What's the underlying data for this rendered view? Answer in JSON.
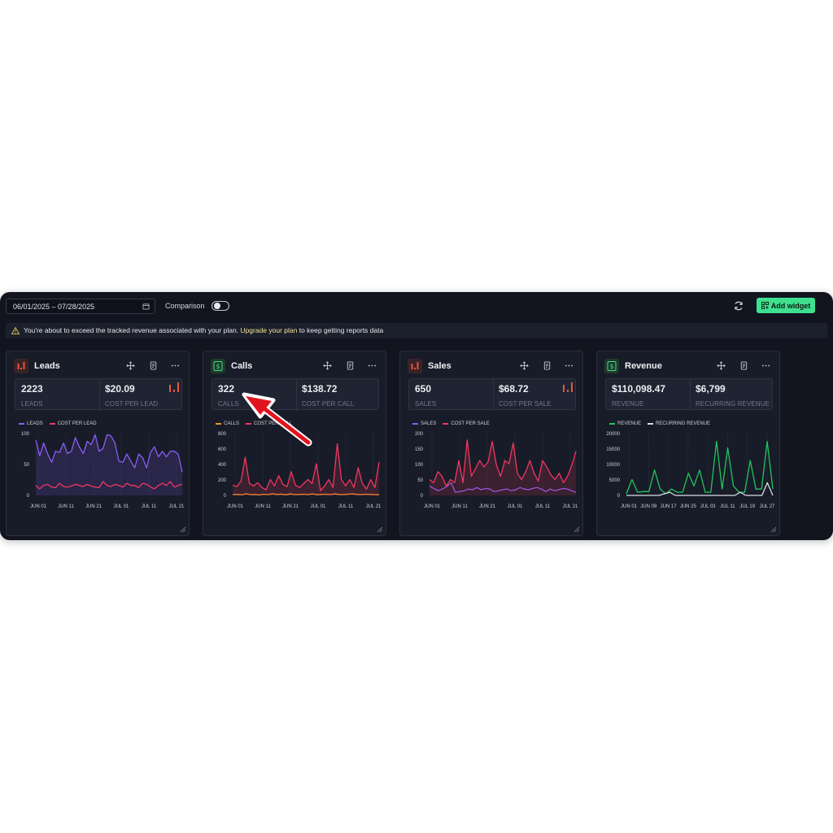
{
  "toolbar": {
    "date_range": "06/01/2025 – 07/28/2025",
    "comparison_label": "Comparison",
    "comparison_on": false,
    "add_widget_label": "Add widget"
  },
  "alert": {
    "text_before": "You're about to exceed the tracked revenue associated with your plan.",
    "link": "Upgrade your plan",
    "text_after": " to keep getting reports data"
  },
  "colors": {
    "accent_green": "#3ee08f",
    "purple": "#8b5cf6",
    "pink": "#f0375f",
    "orange": "#f0932b",
    "green_line": "#22c55e",
    "white_line": "#d8dde5"
  },
  "cards": [
    {
      "title": "Leads",
      "icon": "bar-chart-icon",
      "stats": [
        {
          "value": "2223",
          "label": "LEADS"
        },
        {
          "value": "$20.09",
          "label": "COST PER LEAD"
        }
      ],
      "chart_data": {
        "type": "line",
        "yticks": [
          "100",
          "50",
          "0"
        ],
        "ylim": [
          0,
          115
        ],
        "xticks": [
          "JUN 01",
          "JUN 11",
          "JUN 21",
          "JUL 01",
          "JUL 11",
          "JUL 21"
        ],
        "series": [
          {
            "name": "LEADS",
            "color": "#8b5cf6",
            "fill": true,
            "values": [
              100,
              72,
              95,
              75,
              60,
              80,
              78,
              95,
              76,
              80,
              105,
              88,
              76,
              98,
              92,
              110,
              80,
              85,
              110,
              108,
              95,
              62,
              60,
              75,
              62,
              50,
              75,
              68,
              50,
              78,
              88,
              70,
              80,
              70,
              80,
              80,
              75,
              42
            ]
          },
          {
            "name": "COST PER LEAD",
            "color": "#f0375f",
            "fill": false,
            "values": [
              18,
              12,
              18,
              20,
              15,
              14,
              22,
              16,
              15,
              17,
              20,
              18,
              16,
              20,
              17,
              15,
              14,
              25,
              18,
              16,
              20,
              18,
              15,
              22,
              18,
              18,
              14,
              22,
              20,
              15,
              12,
              18,
              22,
              18,
              25,
              15,
              18,
              20
            ]
          }
        ]
      }
    },
    {
      "title": "Calls",
      "icon": "dollar-icon",
      "stats": [
        {
          "value": "322",
          "label": "CALLS"
        },
        {
          "value": "$138.72",
          "label": "COST PER CALL"
        }
      ],
      "chart_data": {
        "type": "line",
        "yticks": [
          "800",
          "600",
          "400",
          "200",
          "0"
        ],
        "ylim": [
          0,
          800
        ],
        "xticks": [
          "JUN 01",
          "JUN 11",
          "JUN 21",
          "JUL 01",
          "JUL 11",
          "JUL 21"
        ],
        "series": [
          {
            "name": "CALLS",
            "color": "#f0932b",
            "fill": false,
            "values": [
              10,
              12,
              8,
              20,
              10,
              12,
              5,
              15,
              10,
              20,
              12,
              15,
              8,
              18,
              10,
              12,
              15,
              10,
              20,
              8,
              12,
              15,
              10,
              18,
              12,
              10,
              15,
              20,
              12,
              10,
              15,
              12,
              10,
              8
            ]
          },
          {
            "name": "COST PER CALL",
            "color": "#f0375f",
            "fill": true,
            "values": [
              130,
              110,
              180,
              480,
              150,
              120,
              160,
              100,
              70,
              200,
              120,
              250,
              140,
              110,
              300,
              130,
              100,
              150,
              200,
              150,
              400,
              60,
              120,
              200,
              100,
              650,
              200,
              120,
              200,
              100,
              350,
              150,
              80,
              200,
              100,
              420
            ]
          }
        ]
      }
    },
    {
      "title": "Sales",
      "icon": "bar-chart-icon",
      "stats": [
        {
          "value": "650",
          "label": "SALES"
        },
        {
          "value": "$68.72",
          "label": "COST PER SALE"
        }
      ],
      "chart_data": {
        "type": "line",
        "yticks": [
          "200",
          "150",
          "100",
          "50",
          "0"
        ],
        "ylim": [
          0,
          200
        ],
        "xticks": [
          "JUN 01",
          "JUN 11",
          "JUN 21",
          "JUL 01",
          "JUL 11",
          "JUL 21"
        ],
        "series": [
          {
            "name": "SALES",
            "color": "#8b5cf6",
            "fill": false,
            "values": [
              30,
              22,
              15,
              20,
              28,
              40,
              10,
              12,
              15,
              20,
              18,
              25,
              18,
              22,
              20,
              12,
              15,
              18,
              20,
              15,
              18,
              25,
              20,
              18,
              22,
              25,
              20,
              12,
              20,
              15,
              18,
              22,
              20,
              15,
              10
            ]
          },
          {
            "name": "COST PER SALE",
            "color": "#f0375f",
            "fill": true,
            "values": [
              50,
              40,
              75,
              60,
              30,
              50,
              40,
              110,
              40,
              175,
              60,
              85,
              110,
              90,
              105,
              170,
              95,
              60,
              110,
              100,
              165,
              70,
              50,
              75,
              110,
              70,
              45,
              110,
              90,
              65,
              50,
              70,
              40,
              60,
              95,
              140
            ]
          }
        ]
      }
    },
    {
      "title": "Revenue",
      "icon": "dollar-icon",
      "stats": [
        {
          "value": "$110,098.47",
          "label": "REVENUE"
        },
        {
          "value": "$6,799",
          "label": "RECURRING REVENUE"
        }
      ],
      "chart_data": {
        "type": "line",
        "yticks": [
          "20000",
          "15000",
          "10000",
          "5000",
          "0"
        ],
        "ylim": [
          0,
          20000
        ],
        "xticks": [
          "JUN 01",
          "JUN 09",
          "JUN 17",
          "JUN 25",
          "JUL 03",
          "JUL 11",
          "JUL 19",
          "JUL 27"
        ],
        "series": [
          {
            "name": "REVENUE",
            "color": "#22c55e",
            "fill": false,
            "values": [
              500,
              5000,
              1000,
              1200,
              1200,
              8000,
              2000,
              500,
              2000,
              1000,
              1000,
              7000,
              3000,
              8000,
              1000,
              1000,
              17000,
              2000,
              15000,
              3000,
              1000,
              1000,
              11000,
              2000,
              2000,
              17000,
              2000
            ]
          },
          {
            "name": "RECURRING REVENUE",
            "color": "#d8dde5",
            "fill": false,
            "values": [
              0,
              0,
              0,
              0,
              0,
              0,
              0,
              500,
              1000,
              0,
              0,
              0,
              0,
              0,
              0,
              0,
              0,
              0,
              0,
              0,
              0,
              1000,
              0,
              0,
              0,
              0,
              4000,
              0
            ]
          }
        ]
      }
    }
  ]
}
